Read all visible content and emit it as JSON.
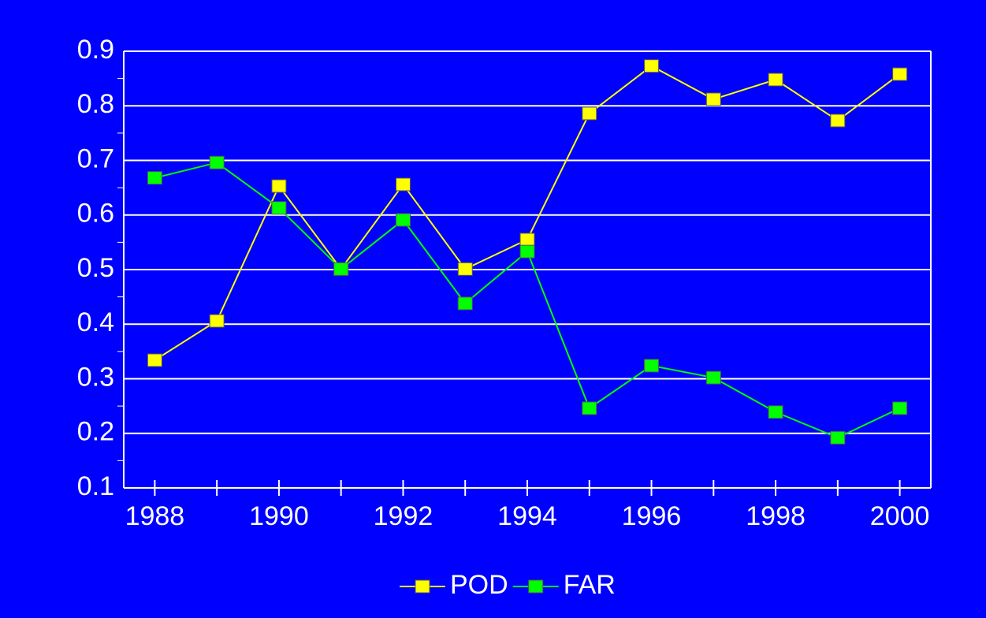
{
  "chart_data": {
    "type": "line",
    "categories": [
      "1988",
      null,
      "1990",
      null,
      "1992",
      null,
      "1994",
      null,
      "1996",
      null,
      "1998",
      null,
      "2000"
    ],
    "series": [
      {
        "name": "POD",
        "color": "#ffff00",
        "values": [
          0.334,
          0.406,
          0.653,
          0.501,
          0.656,
          0.501,
          0.555,
          0.786,
          0.873,
          0.812,
          0.848,
          0.773,
          0.858
        ]
      },
      {
        "name": "FAR",
        "color": "#00ff00",
        "values": [
          0.668,
          0.696,
          0.613,
          0.501,
          0.591,
          0.438,
          0.533,
          0.246,
          0.324,
          0.302,
          0.239,
          0.192,
          0.246
        ]
      }
    ],
    "ylim": [
      0.1,
      0.9
    ],
    "yticks": [
      0.1,
      0.2,
      0.3,
      0.4,
      0.5,
      0.6,
      0.7,
      0.8,
      0.9
    ],
    "grid": true,
    "legend": "bottom"
  }
}
